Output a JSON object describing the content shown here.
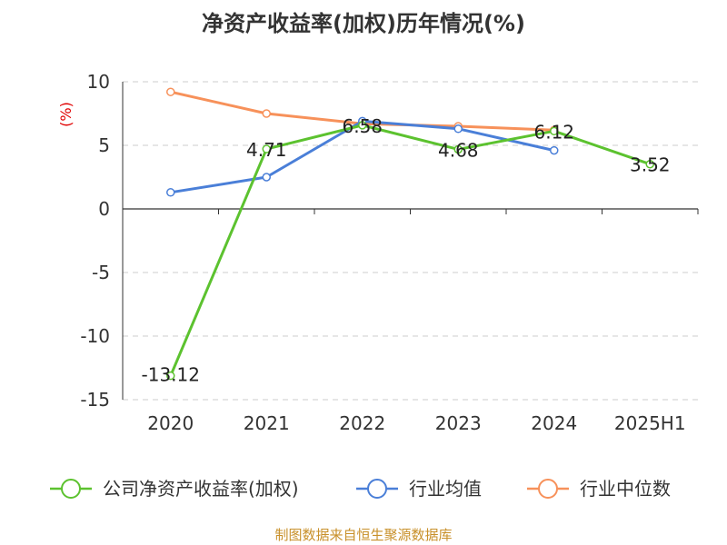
{
  "chart_data": {
    "type": "line",
    "title": "净资产收益率(加权)历年情况(%)",
    "ylabel": "(%)",
    "categories": [
      "2020",
      "2021",
      "2022",
      "2023",
      "2024",
      "2025H1"
    ],
    "ylim": [
      -15,
      10
    ],
    "yticks": [
      10,
      5,
      0,
      -5,
      -10,
      -15
    ],
    "grid": true,
    "legend_position": "bottom",
    "series": [
      {
        "name": "公司净资产收益率(加权)",
        "color": "#5cc22f",
        "values": [
          -13.12,
          4.71,
          6.58,
          4.68,
          6.12,
          3.52
        ],
        "labels": [
          "-13.12",
          "4.71",
          "6.58",
          "4.68",
          "6.12",
          "3.52"
        ]
      },
      {
        "name": "行业均值",
        "color": "#4a7fd8",
        "values": [
          1.3,
          2.5,
          6.9,
          6.3,
          4.6,
          null
        ]
      },
      {
        "name": "行业中位数",
        "color": "#f7915a",
        "values": [
          9.2,
          7.5,
          6.7,
          6.5,
          6.2,
          null
        ]
      }
    ]
  },
  "source_text": "制图数据来自恒生聚源数据库"
}
